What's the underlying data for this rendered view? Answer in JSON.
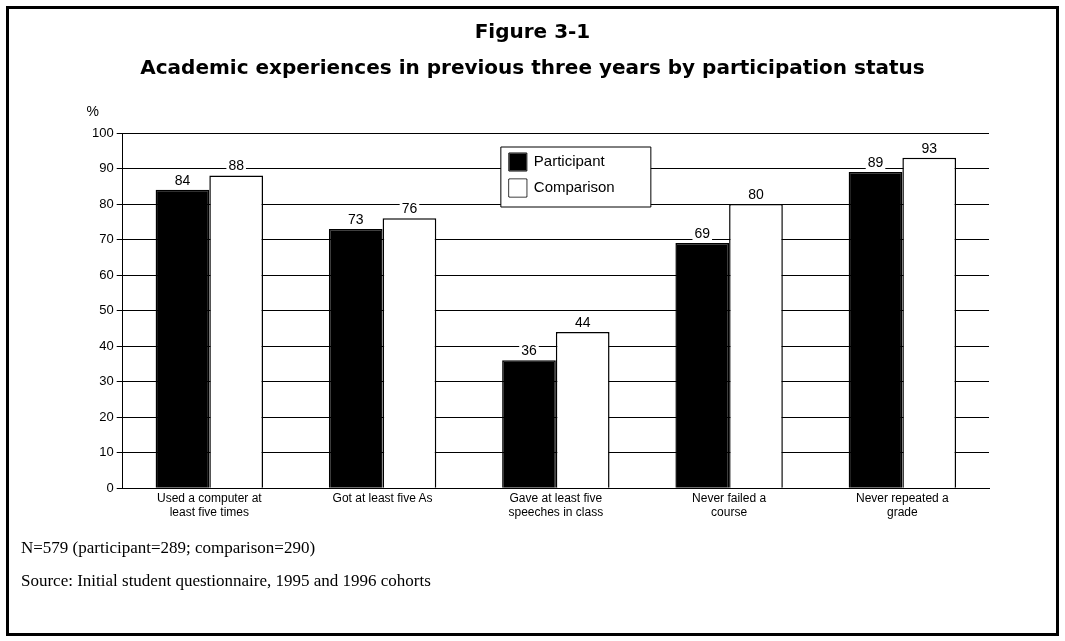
{
  "chart_data": {
    "type": "bar",
    "title": "Figure 3-1",
    "subtitle": "Academic experiences in previous three years by participation status",
    "ylabel": "%",
    "categories": [
      "Used a computer at least five times",
      "Got at least five As",
      "Gave at least five speeches in class",
      "Never failed a course",
      "Never repeated a grade"
    ],
    "series": [
      {
        "name": "Participant",
        "color": "#000000",
        "values": [
          84,
          73,
          36,
          69,
          89
        ]
      },
      {
        "name": "Comparison",
        "color": "#ffffff",
        "values": [
          88,
          76,
          44,
          80,
          93
        ]
      }
    ],
    "ylim": [
      0,
      100
    ],
    "yticks": [
      0,
      10,
      20,
      30,
      40,
      50,
      60,
      70,
      80,
      90,
      100
    ],
    "grid": "y",
    "legend": "top",
    "data_labels": true,
    "annotations": [
      "N=579 (participant=289; comparison=290)",
      "Source: Initial student questionnaire, 1995 and 1996 cohorts"
    ]
  }
}
